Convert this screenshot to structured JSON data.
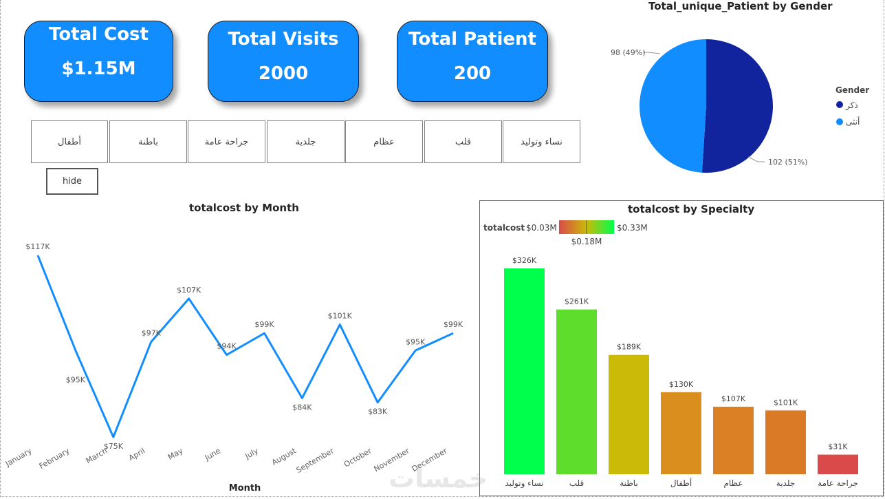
{
  "kpis": {
    "total_cost": {
      "title": "Total Cost",
      "value": "$1.15M"
    },
    "total_visits": {
      "title": "Total Visits",
      "value": "2000"
    },
    "total_patient": {
      "title": "Total Patient",
      "value": "200"
    }
  },
  "slicer": {
    "items": [
      "أطفال",
      "باطنة",
      "جراحة عامة",
      "جلدية",
      "عظام",
      "قلب",
      "نساء وتوليد"
    ]
  },
  "hide_button": {
    "label": "hide"
  },
  "gender_chart": {
    "title": "Total_unique_Patient by Gender",
    "legend_title": "Gender",
    "legend": [
      {
        "name": "ذكر",
        "color": "#12239E"
      },
      {
        "name": "أنثى",
        "color": "#118DFF"
      }
    ],
    "labels": {
      "female": "98 (49%)",
      "male": "102 (51%)"
    }
  },
  "month_chart": {
    "title": "totalcost by Month",
    "xlabel": "Month"
  },
  "specialty_chart": {
    "title": "totalcost by Specialty",
    "legend_label": "totalcost",
    "legend_min": "$0.03M",
    "legend_mid": "$0.18M",
    "legend_max": "$0.33M"
  },
  "watermark": "خمسات",
  "chart_data": [
    {
      "type": "pie",
      "title": "Total_unique_Patient by Gender",
      "categories": [
        "ذكر",
        "أنثى"
      ],
      "values": [
        102,
        98
      ],
      "labels": [
        "102 (51%)",
        "98 (49%)"
      ],
      "colors": [
        "#12239E",
        "#118DFF"
      ],
      "legend": "right"
    },
    {
      "type": "line",
      "title": "totalcost by Month",
      "xlabel": "Month",
      "ylabel": "",
      "x": [
        "January",
        "February",
        "March",
        "April",
        "May",
        "June",
        "July",
        "August",
        "September",
        "October",
        "November",
        "December"
      ],
      "values": [
        117,
        95,
        75,
        97,
        107,
        94,
        99,
        84,
        101,
        83,
        95,
        99
      ],
      "labels": [
        "$117K",
        "$95K",
        "$75K",
        "$97K",
        "$107K",
        "$94K",
        "$99K",
        "$84K",
        "$101K",
        "$83K",
        "$95K",
        "$99K"
      ],
      "ylim": [
        75,
        117
      ],
      "color": "#118DFF",
      "grid": false
    },
    {
      "type": "bar",
      "title": "totalcost by Specialty",
      "categories": [
        "نساء وتوليد",
        "قلب",
        "باطنة",
        "أطفال",
        "عظام",
        "جلدية",
        "جراحة عامة"
      ],
      "values": [
        326,
        261,
        189,
        130,
        107,
        101,
        31
      ],
      "labels": [
        "$326K",
        "$261K",
        "$189K",
        "$130K",
        "$107K",
        "$101K",
        "$31K"
      ],
      "colors": [
        "#00FF4C",
        "#5EDD2C",
        "#CBBA07",
        "#DA8E1E",
        "#DB8024",
        "#DA7A26",
        "#DA4A4A"
      ],
      "ylim": [
        0,
        326
      ],
      "grid": false
    }
  ]
}
